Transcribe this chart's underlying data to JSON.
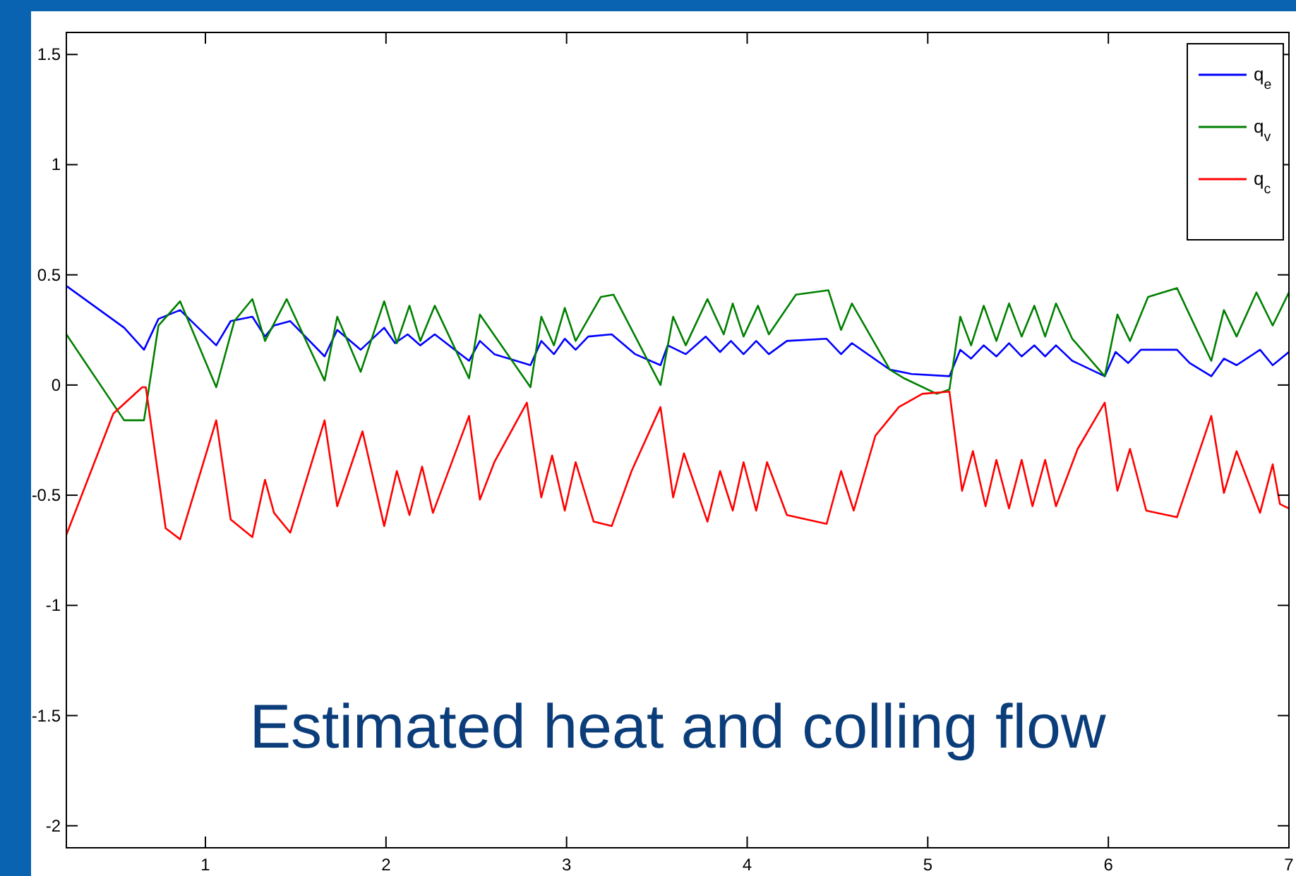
{
  "chart_data": {
    "type": "line",
    "xlim": [
      0.23,
      7
    ],
    "ylim": [
      -2.1,
      1.6
    ],
    "xticks": [
      1,
      2,
      3,
      4,
      5,
      6,
      7
    ],
    "yticks": [
      {
        "value": -2,
        "label": "-2"
      },
      {
        "value": -1.5,
        "label": "-1.5"
      },
      {
        "value": -1,
        "label": "-1"
      },
      {
        "value": -0.5,
        "label": "-0.5"
      },
      0,
      0.5,
      1,
      1.5
    ],
    "grid": false,
    "legend": "top right",
    "marker": "none",
    "line_style": "solid",
    "annotations": [
      "Estimated heat and colling flow"
    ],
    "series": [
      {
        "name": "q$_{e}$",
        "color": "#0000ff",
        "x": [
          0.23,
          0.55,
          0.66,
          0.74,
          0.86,
          1.06,
          1.14,
          1.26,
          1.33,
          1.38,
          1.47,
          1.66,
          1.73,
          1.86,
          1.99,
          2.05,
          2.12,
          2.19,
          2.27,
          2.46,
          2.52,
          2.6,
          2.8,
          2.86,
          2.93,
          2.99,
          3.05,
          3.12,
          3.25,
          3.38,
          3.52,
          3.56,
          3.66,
          3.77,
          3.85,
          3.91,
          3.98,
          4.05,
          4.12,
          4.22,
          4.44,
          4.52,
          4.58,
          4.79,
          4.91,
          5.12,
          5.18,
          5.24,
          5.31,
          5.38,
          5.45,
          5.52,
          5.59,
          5.65,
          5.71,
          5.8,
          5.98,
          6.04,
          6.11,
          6.18,
          6.38,
          6.45,
          6.57,
          6.64,
          6.71,
          6.84,
          6.91,
          7.0
        ],
        "values": [
          0.45,
          0.26,
          0.16,
          0.3,
          0.34,
          0.18,
          0.29,
          0.31,
          0.22,
          0.27,
          0.29,
          0.13,
          0.25,
          0.16,
          0.26,
          0.19,
          0.23,
          0.18,
          0.23,
          0.11,
          0.2,
          0.14,
          0.09,
          0.2,
          0.14,
          0.21,
          0.16,
          0.22,
          0.23,
          0.14,
          0.09,
          0.18,
          0.14,
          0.22,
          0.15,
          0.2,
          0.14,
          0.2,
          0.14,
          0.2,
          0.21,
          0.14,
          0.19,
          0.07,
          0.05,
          0.04,
          0.16,
          0.12,
          0.18,
          0.13,
          0.19,
          0.13,
          0.18,
          0.13,
          0.18,
          0.11,
          0.04,
          0.15,
          0.1,
          0.16,
          0.16,
          0.1,
          0.04,
          0.12,
          0.09,
          0.16,
          0.09,
          0.15
        ]
      },
      {
        "name": "q$_{v}$",
        "color": "#008000",
        "x": [
          0.23,
          0.55,
          0.66,
          0.74,
          0.86,
          1.06,
          1.16,
          1.26,
          1.33,
          1.45,
          1.66,
          1.73,
          1.86,
          1.99,
          2.06,
          2.13,
          2.19,
          2.27,
          2.46,
          2.52,
          2.8,
          2.86,
          2.93,
          2.99,
          3.05,
          3.19,
          3.26,
          3.52,
          3.59,
          3.66,
          3.78,
          3.87,
          3.92,
          3.98,
          4.06,
          4.12,
          4.27,
          4.45,
          4.52,
          4.58,
          4.79,
          4.87,
          5.05,
          5.12,
          5.18,
          5.24,
          5.31,
          5.38,
          5.45,
          5.52,
          5.59,
          5.65,
          5.71,
          5.8,
          5.98,
          6.05,
          6.12,
          6.22,
          6.38,
          6.57,
          6.64,
          6.71,
          6.82,
          6.91,
          7.0
        ],
        "values": [
          0.23,
          -0.16,
          -0.16,
          0.27,
          0.38,
          -0.01,
          0.29,
          0.39,
          0.2,
          0.39,
          0.02,
          0.31,
          0.06,
          0.38,
          0.19,
          0.36,
          0.2,
          0.36,
          0.03,
          0.32,
          -0.01,
          0.31,
          0.18,
          0.35,
          0.2,
          0.4,
          0.41,
          0.0,
          0.31,
          0.18,
          0.39,
          0.23,
          0.37,
          0.22,
          0.36,
          0.23,
          0.41,
          0.43,
          0.25,
          0.37,
          0.07,
          0.03,
          -0.04,
          -0.02,
          0.31,
          0.18,
          0.36,
          0.2,
          0.37,
          0.22,
          0.36,
          0.22,
          0.37,
          0.21,
          0.04,
          0.32,
          0.2,
          0.4,
          0.44,
          0.11,
          0.34,
          0.22,
          0.42,
          0.27,
          0.42
        ]
      },
      {
        "name": "q$_{c}$",
        "color": "#ff0000",
        "x": [
          0.23,
          0.49,
          0.65,
          0.67,
          0.78,
          0.86,
          1.06,
          1.14,
          1.26,
          1.33,
          1.38,
          1.47,
          1.66,
          1.73,
          1.87,
          1.99,
          2.06,
          2.13,
          2.2,
          2.26,
          2.46,
          2.52,
          2.6,
          2.78,
          2.86,
          2.92,
          2.99,
          3.05,
          3.15,
          3.25,
          3.36,
          3.52,
          3.59,
          3.65,
          3.78,
          3.85,
          3.92,
          3.98,
          4.05,
          4.11,
          4.22,
          4.44,
          4.52,
          4.59,
          4.71,
          4.84,
          4.97,
          5.12,
          5.19,
          5.25,
          5.32,
          5.38,
          5.45,
          5.52,
          5.58,
          5.65,
          5.71,
          5.83,
          5.98,
          6.05,
          6.12,
          6.21,
          6.38,
          6.57,
          6.64,
          6.71,
          6.84,
          6.91,
          6.95,
          7.0
        ],
        "values": [
          -0.68,
          -0.13,
          -0.01,
          -0.01,
          -0.65,
          -0.7,
          -0.16,
          -0.61,
          -0.69,
          -0.43,
          -0.58,
          -0.67,
          -0.16,
          -0.55,
          -0.21,
          -0.64,
          -0.39,
          -0.59,
          -0.37,
          -0.58,
          -0.14,
          -0.52,
          -0.35,
          -0.08,
          -0.51,
          -0.32,
          -0.57,
          -0.35,
          -0.62,
          -0.64,
          -0.39,
          -0.1,
          -0.51,
          -0.31,
          -0.62,
          -0.39,
          -0.57,
          -0.35,
          -0.57,
          -0.35,
          -0.59,
          -0.63,
          -0.39,
          -0.57,
          -0.23,
          -0.1,
          -0.04,
          -0.03,
          -0.48,
          -0.3,
          -0.55,
          -0.34,
          -0.56,
          -0.34,
          -0.55,
          -0.34,
          -0.55,
          -0.29,
          -0.08,
          -0.48,
          -0.29,
          -0.57,
          -0.6,
          -0.14,
          -0.49,
          -0.3,
          -0.58,
          -0.36,
          -0.54,
          -0.56
        ]
      }
    ]
  }
}
